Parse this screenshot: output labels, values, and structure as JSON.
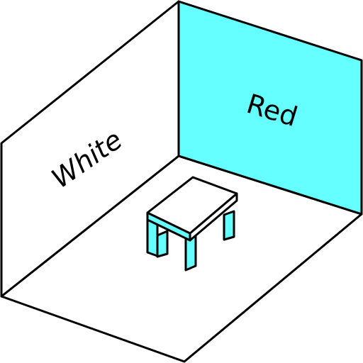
{
  "labels": {
    "left_wall": "White",
    "back_wall": "Red"
  },
  "colors": {
    "background": "#ffffff",
    "outline": "#000000",
    "left_wall_fill": "#ffffff",
    "back_wall_fill": "#66ffff",
    "floor_fill": "#ffffff",
    "table_top_fill": "#ffffff",
    "table_leg_fill": "#66ffff"
  }
}
